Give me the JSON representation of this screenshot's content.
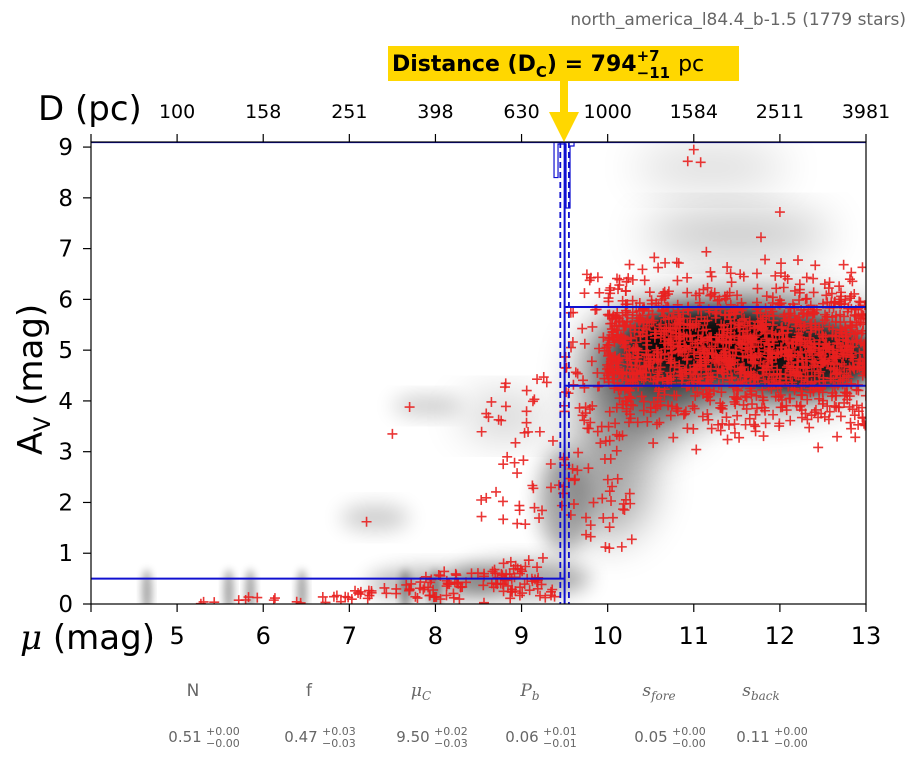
{
  "header": {
    "region_label": "north_america_l84.4_b-1.5 (1779 stars)"
  },
  "callout": {
    "label_main": "Distance (D",
    "label_sub": "C",
    "label_eq": ") = 794",
    "label_sup": "+7",
    "label_low": "−11",
    "label_unit": "pc",
    "highlight_color": "#ffd700",
    "arrow_color": "#ffd700"
  },
  "colors": {
    "points": "#e8201f",
    "lines": "#1010d0",
    "frame": "#000000",
    "param_text": "#666666"
  },
  "chart_data": {
    "type": "scatter",
    "title": "",
    "xlabel": "μ (mag)",
    "x2label": "D (pc)",
    "ylabel_main": "A",
    "ylabel_sub": "V",
    "ylabel_unit": " (mag)",
    "xlim": [
      4,
      13
    ],
    "ylim": [
      0,
      9.1
    ],
    "x_ticks": [
      4,
      5,
      6,
      7,
      8,
      9,
      10,
      11,
      12,
      13
    ],
    "x_tick_labels": [
      "",
      "5",
      "6",
      "7",
      "8",
      "9",
      "10",
      "11",
      "12",
      "13"
    ],
    "x2_ticks": [
      4,
      5,
      6,
      7,
      8,
      9,
      10,
      11,
      12,
      13
    ],
    "x2_tick_labels": [
      "",
      "100",
      "158",
      "251",
      "398",
      "630",
      "1000",
      "1584",
      "2511",
      "3981"
    ],
    "y_ticks": [
      0,
      1,
      2,
      3,
      4,
      5,
      6,
      7,
      8,
      9
    ],
    "y_tick_labels": [
      "0",
      "1",
      "2",
      "3",
      "4",
      "5",
      "6",
      "7",
      "8",
      "9"
    ],
    "grid": false,
    "fit": {
      "mu_c": 9.5,
      "mu_c_upper": 9.55,
      "mu_c_lower": 9.45,
      "foreground_av": 0.5,
      "background_av_low": 4.3,
      "background_av_high": 5.85
    },
    "highlighted_points": [
      {
        "x": 11.0,
        "y": 8.95
      },
      {
        "x": 11.08,
        "y": 8.7
      },
      {
        "x": 10.93,
        "y": 8.72
      },
      {
        "x": 12.0,
        "y": 7.72
      },
      {
        "x": 7.7,
        "y": 3.88
      },
      {
        "x": 7.5,
        "y": 3.35
      },
      {
        "x": 7.2,
        "y": 1.62
      },
      {
        "x": 8.65,
        "y": 3.98
      }
    ],
    "clusters": [
      {
        "x": [
          4.6,
          9.4
        ],
        "y": [
          0.0,
          1.0
        ],
        "n": 140
      },
      {
        "x": [
          8.5,
          9.5
        ],
        "y": [
          1.5,
          4.5
        ],
        "n": 50
      },
      {
        "x": [
          9.5,
          10.3
        ],
        "y": [
          1.0,
          6.5
        ],
        "n": 120
      },
      {
        "x": [
          10.0,
          13.0
        ],
        "y": [
          3.0,
          7.3
        ],
        "n": 1350
      }
    ]
  },
  "parameters": [
    {
      "name": "N",
      "value": "0.51",
      "plus": "+0.00",
      "minus": "−0.00",
      "italic": false,
      "sub": ""
    },
    {
      "name": "f",
      "value": "0.47",
      "plus": "+0.03",
      "minus": "−0.03",
      "italic": false,
      "sub": ""
    },
    {
      "name": "μ",
      "value": "9.50",
      "plus": "+0.02",
      "minus": "−0.03",
      "italic": true,
      "sub": "C"
    },
    {
      "name": "P",
      "value": "0.06",
      "plus": "+0.01",
      "minus": "−0.01",
      "italic": true,
      "sub": "b"
    },
    {
      "name": "s",
      "value": "0.05",
      "plus": "+0.00",
      "minus": "−0.00",
      "italic": true,
      "sub": "fore"
    },
    {
      "name": "s",
      "value": "0.11",
      "plus": "+0.00",
      "minus": "−0.00",
      "italic": true,
      "sub": "back"
    }
  ]
}
